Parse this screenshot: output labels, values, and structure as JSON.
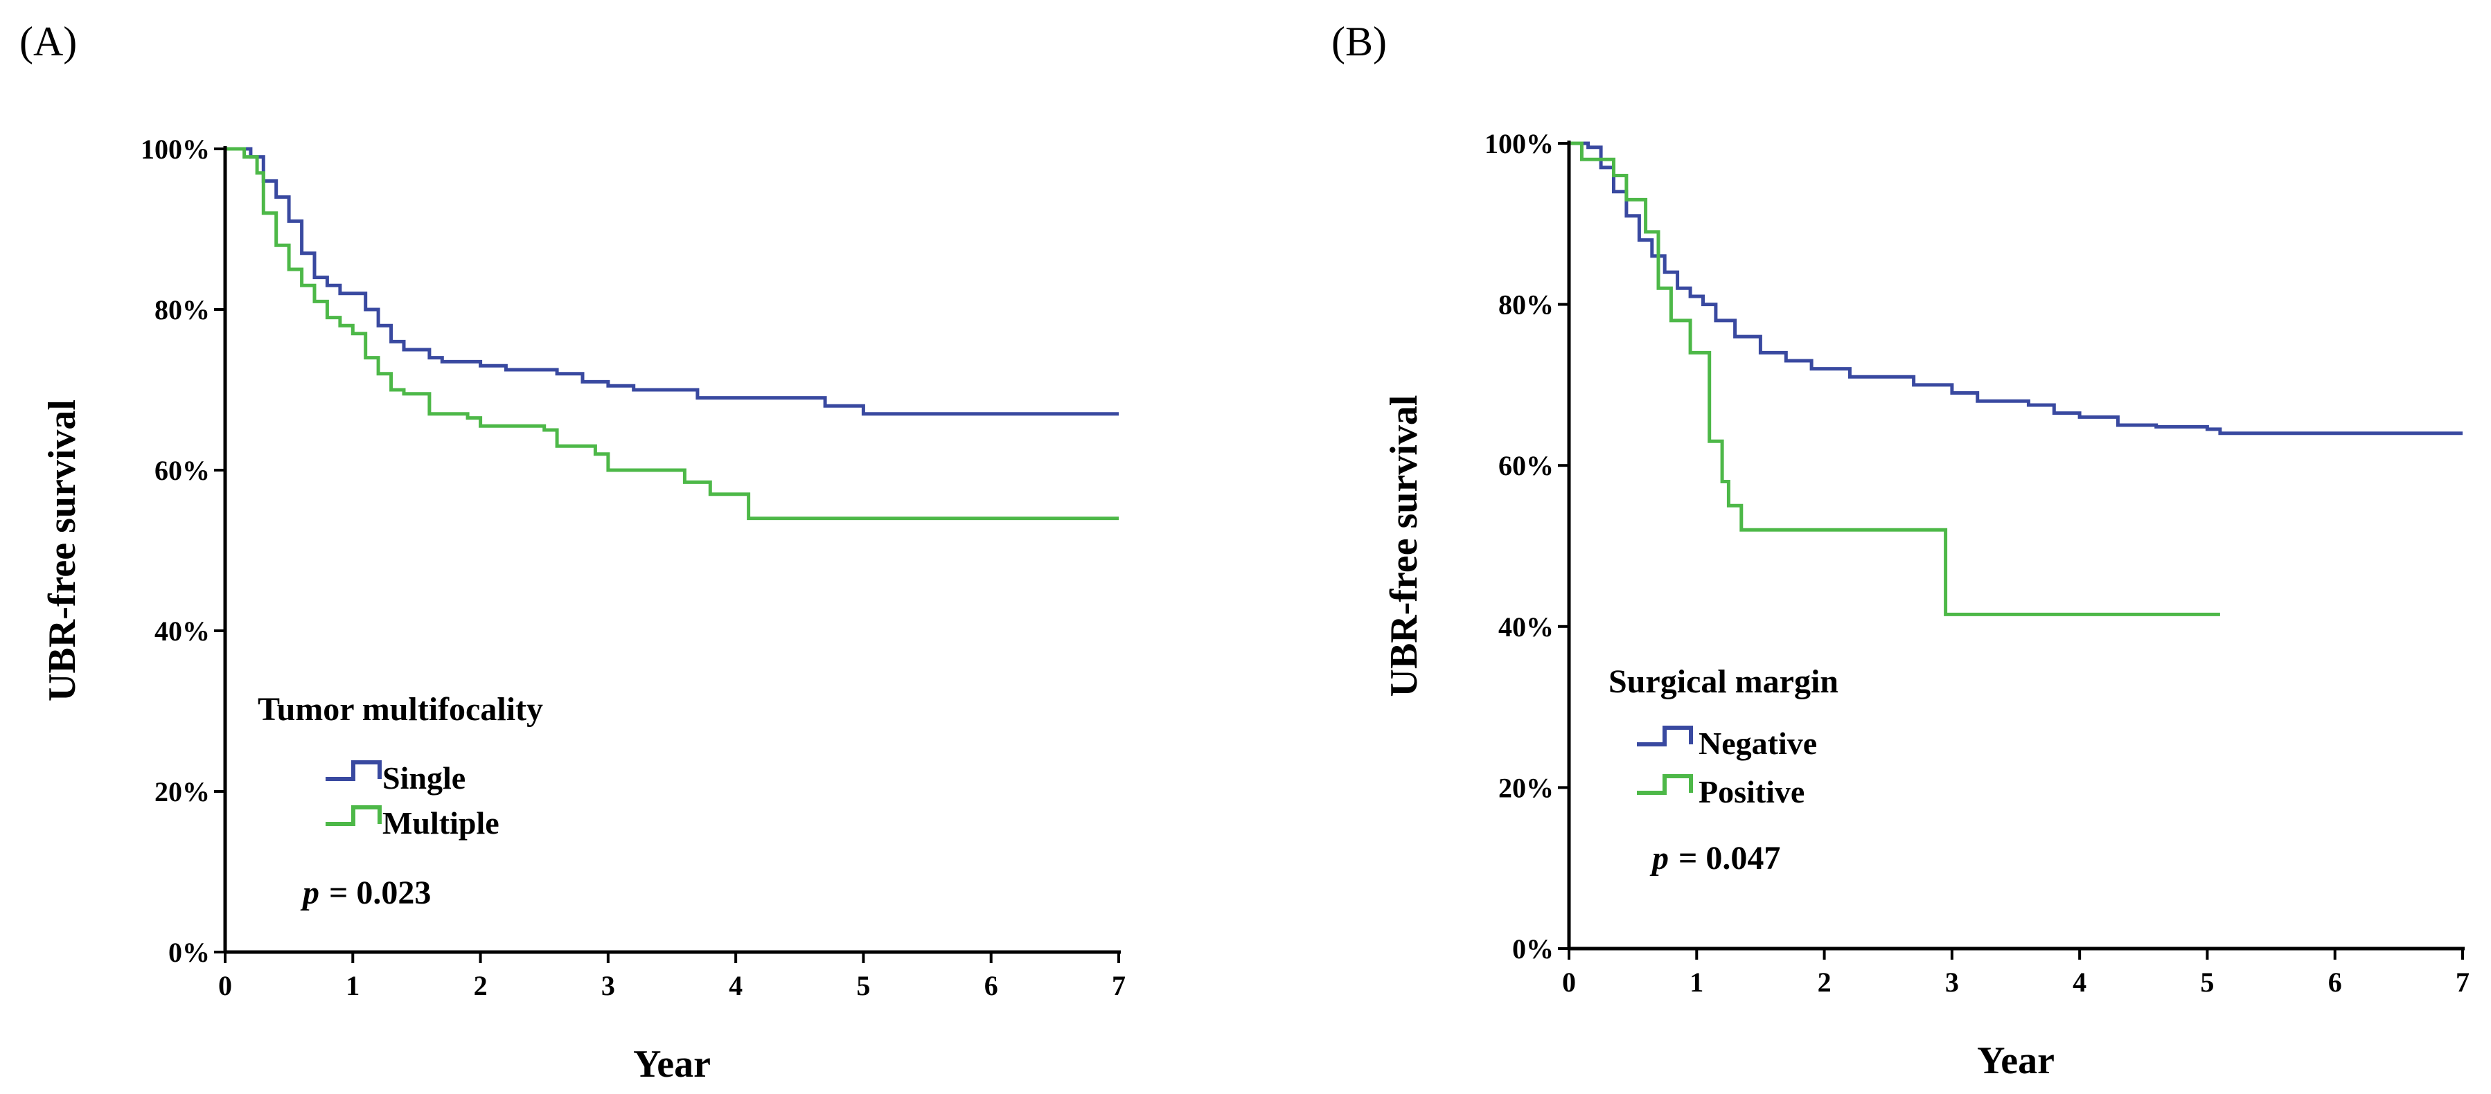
{
  "chart_data": [
    {
      "type": "line",
      "subtype": "kaplan-meier",
      "panel_label": "(A)",
      "xlabel": "Year",
      "ylabel": "UBR-free survival",
      "xlim": [
        0,
        7
      ],
      "ylim": [
        0,
        100
      ],
      "x_ticks": [
        "0",
        "1",
        "2",
        "3",
        "4",
        "5",
        "6",
        "7"
      ],
      "y_ticks": [
        "0%",
        "20%",
        "40%",
        "60%",
        "80%",
        "100%"
      ],
      "legend": {
        "title": "Tumor multifocality",
        "position": "lower-left",
        "entries": [
          "Single",
          "Multiple"
        ]
      },
      "annotation": {
        "p_symbol": "p",
        "p_text": "= 0.023"
      },
      "series": [
        {
          "name": "Single",
          "color": "#3949a0",
          "points": [
            [
              0,
              100
            ],
            [
              0.2,
              99
            ],
            [
              0.3,
              96
            ],
            [
              0.4,
              94
            ],
            [
              0.5,
              91
            ],
            [
              0.6,
              87
            ],
            [
              0.7,
              84
            ],
            [
              0.8,
              83
            ],
            [
              0.9,
              82
            ],
            [
              1.0,
              82
            ],
            [
              1.1,
              80
            ],
            [
              1.2,
              78
            ],
            [
              1.3,
              76
            ],
            [
              1.4,
              75
            ],
            [
              1.6,
              74
            ],
            [
              1.7,
              73.5
            ],
            [
              1.9,
              73.5
            ],
            [
              2.0,
              73
            ],
            [
              2.2,
              72.5
            ],
            [
              2.5,
              72.5
            ],
            [
              2.6,
              72
            ],
            [
              2.8,
              71
            ],
            [
              3.0,
              70.5
            ],
            [
              3.2,
              70
            ],
            [
              3.6,
              70
            ],
            [
              3.7,
              69
            ],
            [
              4.6,
              69
            ],
            [
              4.7,
              68
            ],
            [
              5.0,
              68
            ],
            [
              5.0,
              67
            ],
            [
              7.0,
              67
            ]
          ]
        },
        {
          "name": "Multiple",
          "color": "#4db848",
          "points": [
            [
              0,
              100
            ],
            [
              0.15,
              99
            ],
            [
              0.25,
              97
            ],
            [
              0.3,
              92
            ],
            [
              0.4,
              88
            ],
            [
              0.5,
              85
            ],
            [
              0.6,
              83
            ],
            [
              0.7,
              81
            ],
            [
              0.8,
              79
            ],
            [
              0.9,
              78
            ],
            [
              1.0,
              77
            ],
            [
              1.1,
              74
            ],
            [
              1.2,
              72
            ],
            [
              1.3,
              70
            ],
            [
              1.4,
              69.5
            ],
            [
              1.6,
              67
            ],
            [
              1.9,
              66.5
            ],
            [
              2.0,
              65.5
            ],
            [
              2.5,
              65
            ],
            [
              2.6,
              63
            ],
            [
              2.9,
              62
            ],
            [
              3.0,
              60
            ],
            [
              3.5,
              60
            ],
            [
              3.6,
              58.5
            ],
            [
              3.8,
              57
            ],
            [
              4.0,
              57
            ],
            [
              4.1,
              54
            ],
            [
              7.0,
              54
            ]
          ]
        }
      ]
    },
    {
      "type": "line",
      "subtype": "kaplan-meier",
      "panel_label": "(B)",
      "xlabel": "Year",
      "ylabel": "UBR-free survival",
      "xlim": [
        0,
        7
      ],
      "ylim": [
        0,
        100
      ],
      "x_ticks": [
        "0",
        "1",
        "2",
        "3",
        "4",
        "5",
        "6",
        "7"
      ],
      "y_ticks": [
        "0%",
        "20%",
        "40%",
        "60%",
        "80%",
        "100%"
      ],
      "legend": {
        "title": "Surgical margin",
        "position": "lower-left",
        "entries": [
          "Negative",
          "Positive"
        ]
      },
      "annotation": {
        "p_symbol": "p",
        "p_text": "= 0.047"
      },
      "series": [
        {
          "name": "Negative",
          "color": "#3949a0",
          "points": [
            [
              0,
              100
            ],
            [
              0.15,
              99.5
            ],
            [
              0.25,
              97
            ],
            [
              0.35,
              94
            ],
            [
              0.45,
              91
            ],
            [
              0.55,
              88
            ],
            [
              0.65,
              86
            ],
            [
              0.75,
              84
            ],
            [
              0.85,
              82
            ],
            [
              0.95,
              81
            ],
            [
              1.05,
              80
            ],
            [
              1.15,
              78
            ],
            [
              1.3,
              76
            ],
            [
              1.5,
              74
            ],
            [
              1.7,
              73
            ],
            [
              1.9,
              72
            ],
            [
              2.2,
              71
            ],
            [
              2.5,
              71
            ],
            [
              2.7,
              70
            ],
            [
              3.0,
              69
            ],
            [
              3.2,
              68
            ],
            [
              3.6,
              67.5
            ],
            [
              3.8,
              66.5
            ],
            [
              4.0,
              66
            ],
            [
              4.3,
              65
            ],
            [
              4.6,
              64.8
            ],
            [
              5.0,
              64.5
            ],
            [
              5.1,
              64
            ],
            [
              7.0,
              64
            ]
          ]
        },
        {
          "name": "Positive",
          "color": "#4db848",
          "points": [
            [
              0,
              100
            ],
            [
              0.1,
              98
            ],
            [
              0.35,
              96
            ],
            [
              0.45,
              93
            ],
            [
              0.6,
              89
            ],
            [
              0.7,
              82
            ],
            [
              0.8,
              78
            ],
            [
              0.95,
              74
            ],
            [
              1.1,
              63
            ],
            [
              1.2,
              58
            ],
            [
              1.25,
              55
            ],
            [
              1.35,
              52
            ],
            [
              2.95,
              52
            ],
            [
              2.95,
              41.5
            ],
            [
              5.1,
              41.5
            ]
          ]
        }
      ]
    }
  ]
}
